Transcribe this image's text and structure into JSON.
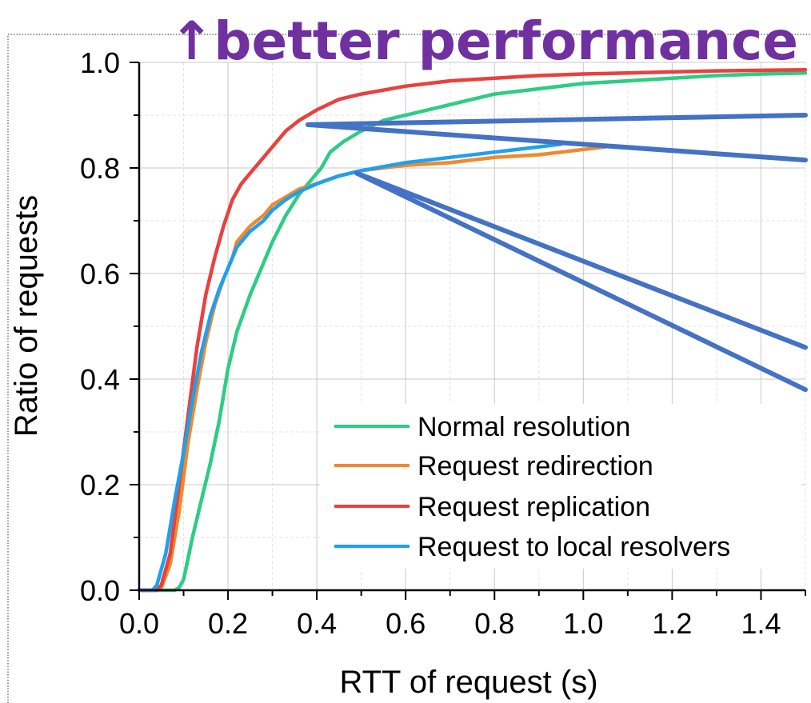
{
  "chart_data": {
    "type": "line",
    "banner": "↑better performance",
    "xlabel": "RTT of request (s)",
    "ylabel": "Ratio of requests",
    "xlim": [
      0,
      1.5
    ],
    "ylim": [
      0,
      1.0
    ],
    "x_ticks": [
      "0.0",
      "0.2",
      "0.4",
      "0.6",
      "0.8",
      "1.0",
      "1.2",
      "1.4"
    ],
    "y_ticks": [
      "0.0",
      "0.2",
      "0.4",
      "0.6",
      "0.8",
      "1.0"
    ],
    "grid": true,
    "legend_position": "bottom-right",
    "series": [
      {
        "name": "Normal resolution",
        "color": "#2ecc84",
        "points": [
          [
            0,
            0
          ],
          [
            0.08,
            0
          ],
          [
            0.09,
            0.005
          ],
          [
            0.1,
            0.02
          ],
          [
            0.11,
            0.06
          ],
          [
            0.12,
            0.1
          ],
          [
            0.14,
            0.17
          ],
          [
            0.16,
            0.24
          ],
          [
            0.18,
            0.32
          ],
          [
            0.2,
            0.42
          ],
          [
            0.22,
            0.49
          ],
          [
            0.25,
            0.56
          ],
          [
            0.28,
            0.62
          ],
          [
            0.3,
            0.66
          ],
          [
            0.33,
            0.71
          ],
          [
            0.36,
            0.75
          ],
          [
            0.39,
            0.78
          ],
          [
            0.41,
            0.8
          ],
          [
            0.43,
            0.83
          ],
          [
            0.46,
            0.85
          ],
          [
            0.5,
            0.87
          ],
          [
            0.55,
            0.89
          ],
          [
            0.6,
            0.9
          ],
          [
            0.7,
            0.92
          ],
          [
            0.8,
            0.94
          ],
          [
            0.9,
            0.95
          ],
          [
            1.0,
            0.96
          ],
          [
            1.1,
            0.965
          ],
          [
            1.2,
            0.97
          ],
          [
            1.3,
            0.975
          ],
          [
            1.4,
            0.978
          ],
          [
            1.5,
            0.98
          ]
        ]
      },
      {
        "name": "Request redirection",
        "color": "#f08a2c",
        "points": [
          [
            0,
            0
          ],
          [
            0.04,
            0
          ],
          [
            0.05,
            0.005
          ],
          [
            0.07,
            0.05
          ],
          [
            0.09,
            0.15
          ],
          [
            0.11,
            0.28
          ],
          [
            0.13,
            0.38
          ],
          [
            0.15,
            0.47
          ],
          [
            0.17,
            0.54
          ],
          [
            0.19,
            0.59
          ],
          [
            0.21,
            0.63
          ],
          [
            0.22,
            0.66
          ],
          [
            0.25,
            0.69
          ],
          [
            0.28,
            0.71
          ],
          [
            0.3,
            0.73
          ],
          [
            0.33,
            0.745
          ],
          [
            0.36,
            0.76
          ],
          [
            0.4,
            0.77
          ],
          [
            0.45,
            0.785
          ],
          [
            0.5,
            0.795
          ],
          [
            0.6,
            0.805
          ],
          [
            0.7,
            0.81
          ],
          [
            0.8,
            0.82
          ],
          [
            0.9,
            0.825
          ],
          [
            0.95,
            0.83
          ],
          [
            1.0,
            0.835
          ],
          [
            1.05,
            0.84
          ]
        ]
      },
      {
        "name": "Request replication",
        "color": "#e8413e",
        "points": [
          [
            0,
            0
          ],
          [
            0.04,
            0
          ],
          [
            0.05,
            0.01
          ],
          [
            0.07,
            0.07
          ],
          [
            0.09,
            0.2
          ],
          [
            0.11,
            0.33
          ],
          [
            0.13,
            0.46
          ],
          [
            0.15,
            0.56
          ],
          [
            0.17,
            0.63
          ],
          [
            0.19,
            0.69
          ],
          [
            0.21,
            0.74
          ],
          [
            0.23,
            0.77
          ],
          [
            0.25,
            0.79
          ],
          [
            0.28,
            0.82
          ],
          [
            0.3,
            0.84
          ],
          [
            0.33,
            0.87
          ],
          [
            0.36,
            0.89
          ],
          [
            0.4,
            0.91
          ],
          [
            0.45,
            0.93
          ],
          [
            0.5,
            0.94
          ],
          [
            0.6,
            0.955
          ],
          [
            0.7,
            0.965
          ],
          [
            0.8,
            0.97
          ],
          [
            0.9,
            0.975
          ],
          [
            1.0,
            0.978
          ],
          [
            1.1,
            0.98
          ],
          [
            1.2,
            0.982
          ],
          [
            1.3,
            0.984
          ],
          [
            1.4,
            0.985
          ],
          [
            1.5,
            0.986
          ]
        ]
      },
      {
        "name": "Request to local resolvers",
        "color": "#1fa0ee",
        "points": [
          [
            0,
            0
          ],
          [
            0.03,
            0
          ],
          [
            0.04,
            0.01
          ],
          [
            0.06,
            0.07
          ],
          [
            0.08,
            0.17
          ],
          [
            0.1,
            0.26
          ],
          [
            0.12,
            0.36
          ],
          [
            0.14,
            0.45
          ],
          [
            0.16,
            0.52
          ],
          [
            0.18,
            0.57
          ],
          [
            0.2,
            0.61
          ],
          [
            0.22,
            0.65
          ],
          [
            0.25,
            0.68
          ],
          [
            0.28,
            0.7
          ],
          [
            0.3,
            0.72
          ],
          [
            0.33,
            0.74
          ],
          [
            0.36,
            0.755
          ],
          [
            0.4,
            0.77
          ],
          [
            0.45,
            0.785
          ],
          [
            0.5,
            0.795
          ],
          [
            0.6,
            0.81
          ],
          [
            0.7,
            0.82
          ],
          [
            0.8,
            0.83
          ],
          [
            0.9,
            0.84
          ],
          [
            0.95,
            0.845
          ]
        ]
      }
    ],
    "callouts": {
      "color": "#4472c4",
      "lines": [
        [
          [
            0.38,
            0.882
          ],
          [
            1.5,
            0.9
          ]
        ],
        [
          [
            0.38,
            0.882
          ],
          [
            1.5,
            0.815
          ]
        ],
        [
          [
            0.49,
            0.79
          ],
          [
            1.5,
            0.46
          ]
        ],
        [
          [
            0.49,
            0.79
          ],
          [
            1.5,
            0.38
          ]
        ]
      ]
    }
  },
  "colors": {
    "banner": "#7030a0",
    "grid": "#c8c8c8",
    "axis": "#000000"
  }
}
